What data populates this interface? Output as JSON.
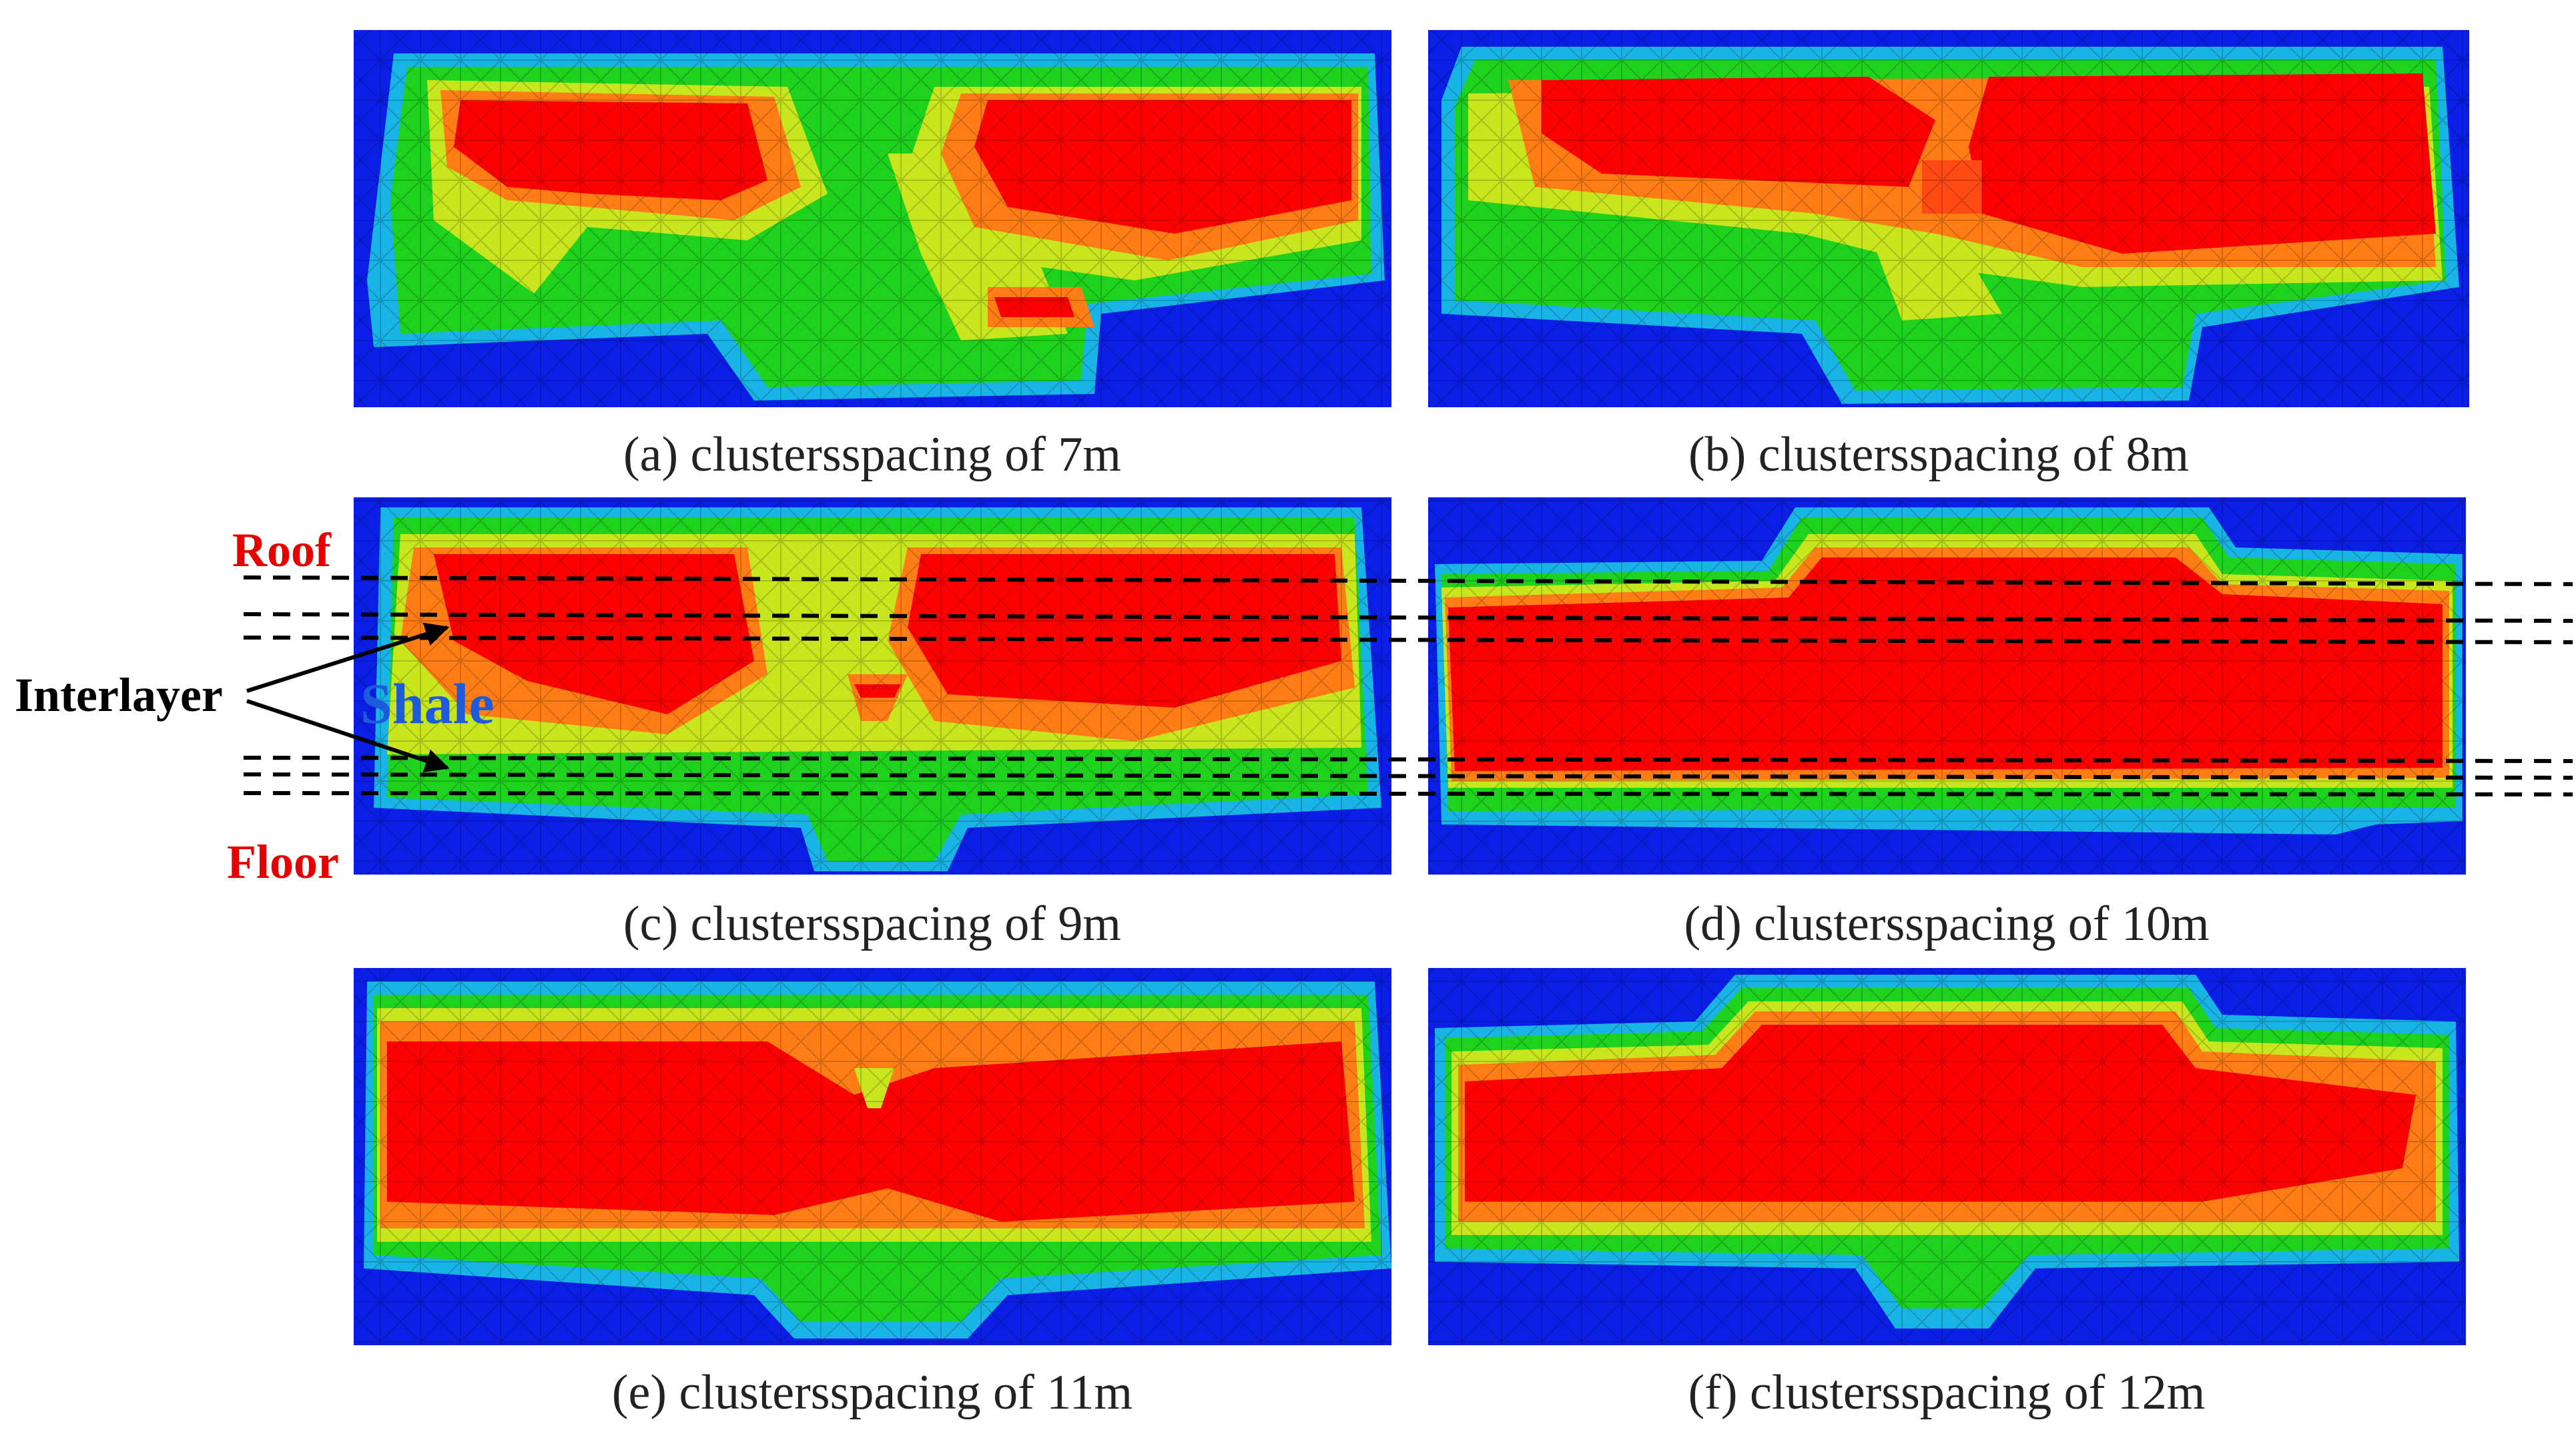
{
  "panels": [
    {
      "id": "a",
      "caption": "(a) clustersspacing of 7m"
    },
    {
      "id": "b",
      "caption": "(b) clustersspacing of 8m"
    },
    {
      "id": "c",
      "caption": "(c) clustersspacing of 9m"
    },
    {
      "id": "d",
      "caption": "(d) clustersspacing of 10m"
    },
    {
      "id": "e",
      "caption": "(e) clustersspacing of 11m"
    },
    {
      "id": "f",
      "caption": "(f) clustersspacing of 12m"
    }
  ],
  "annotations": {
    "roof": "Roof",
    "floor": "Floor",
    "interlayer": "Interlayer",
    "shale": "Shale"
  },
  "colors": {
    "background": "#0a1ee6",
    "cyan": "#19b4e6",
    "green": "#1ed21e",
    "yellow": "#c8e61e",
    "orange": "#ff7d14",
    "red": "#ff0000",
    "annotation_red": "#e60000",
    "annotation_blue": "#1e5adc"
  }
}
